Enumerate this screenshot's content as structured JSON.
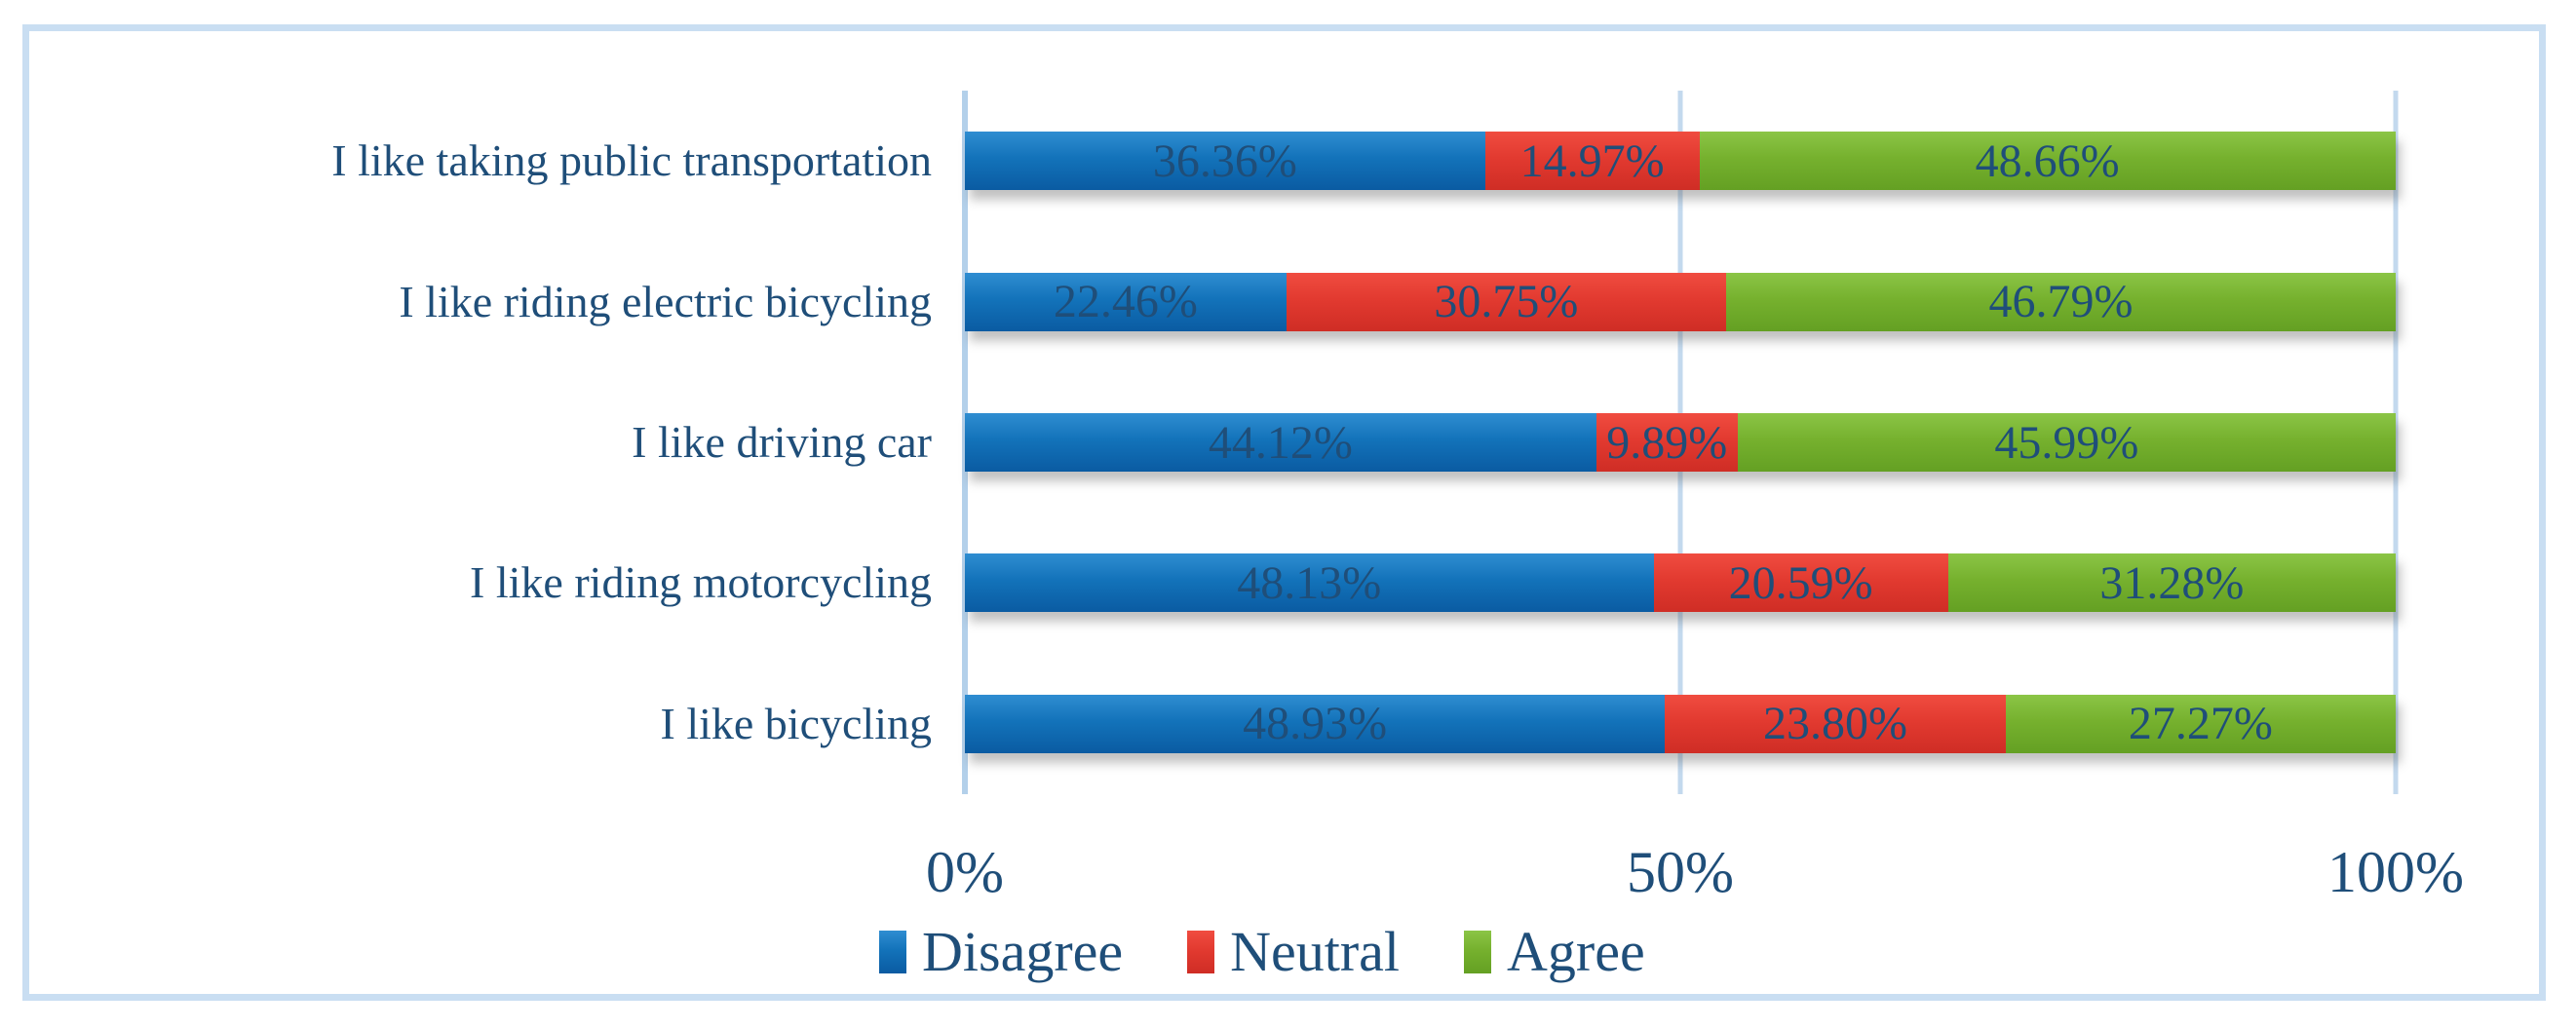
{
  "figure": {
    "background": "#ffffff",
    "border_color": "#c9def2",
    "text_color": "#1F4E79",
    "gridline_color": "#C3D9EE"
  },
  "chart_data": {
    "type": "bar",
    "orientation": "horizontal",
    "stacked": true,
    "title": "",
    "xlabel": "",
    "ylabel": "",
    "categories": [
      "I like taking public transportation",
      "I like riding electric bicycling",
      "I like driving car",
      "I like riding motorcycling",
      "I like bicycling"
    ],
    "series": [
      {
        "name": "Disagree",
        "color": "#1272B9",
        "values": [
          36.36,
          22.46,
          44.12,
          48.13,
          48.93
        ],
        "labels": [
          "36.36%",
          "22.46%",
          "44.12%",
          "48.13%",
          "48.93%"
        ]
      },
      {
        "name": "Neutral",
        "color": "#E23A30",
        "values": [
          14.97,
          30.75,
          9.89,
          20.59,
          23.8
        ],
        "labels": [
          "14.97%",
          "30.75%",
          "9.89%",
          "20.59%",
          "23.80%"
        ]
      },
      {
        "name": "Agree",
        "color": "#75B02D",
        "values": [
          48.66,
          46.79,
          45.99,
          31.28,
          27.27
        ],
        "labels": [
          "48.66%",
          "46.79%",
          "45.99%",
          "31.28%",
          "27.27%"
        ]
      }
    ],
    "x_axis": {
      "ticks": [
        "0%",
        "50%",
        "100%"
      ],
      "tick_positions": [
        0,
        50,
        100
      ],
      "range": [
        0,
        100
      ]
    },
    "legend": {
      "position": "bottom",
      "entries": [
        "Disagree",
        "Neutral",
        "Agree"
      ]
    },
    "grid": true
  }
}
